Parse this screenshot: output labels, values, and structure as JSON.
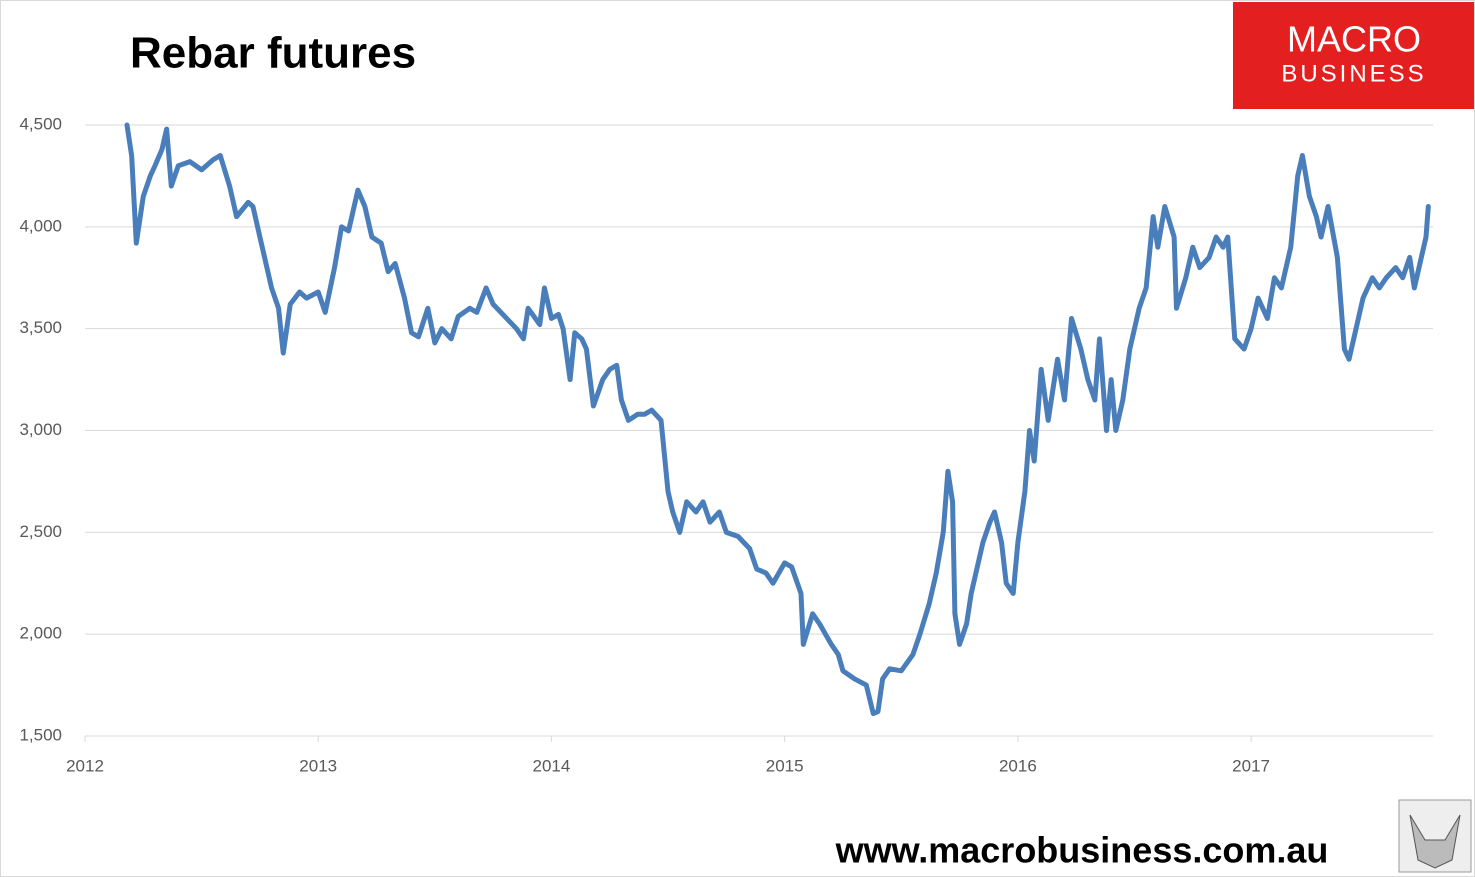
{
  "chart_data": {
    "type": "line",
    "title": "Rebar futures",
    "logo": [
      "MACRO",
      "BUSINESS"
    ],
    "source": "www.macrobusiness.com.au",
    "color": "#4a7ebb",
    "grid": true,
    "xlim": [
      2012,
      2017.78
    ],
    "xticks": [
      2012,
      2013,
      2014,
      2015,
      2016,
      2017
    ],
    "ylim": [
      1500,
      4500
    ],
    "yticks": [
      {
        "value": 1500,
        "label": "1,500"
      },
      {
        "value": 2000,
        "label": "2,000"
      },
      {
        "value": 2500,
        "label": "2,500"
      },
      {
        "value": 3000,
        "label": "3,000"
      },
      {
        "value": 3500,
        "label": "3,500"
      },
      {
        "value": 4000,
        "label": "4,000"
      },
      {
        "value": 4500,
        "label": "4,500"
      }
    ],
    "x": [
      2012.18,
      2012.2,
      2012.22,
      2012.25,
      2012.28,
      2012.3,
      2012.33,
      2012.35,
      2012.37,
      2012.4,
      2012.45,
      2012.5,
      2012.55,
      2012.58,
      2012.62,
      2012.65,
      2012.7,
      2012.72,
      2012.75,
      2012.78,
      2012.8,
      2012.83,
      2012.85,
      2012.88,
      2012.92,
      2012.95,
      2013.0,
      2013.03,
      2013.07,
      2013.1,
      2013.13,
      2013.17,
      2013.2,
      2013.23,
      2013.27,
      2013.3,
      2013.33,
      2013.37,
      2013.4,
      2013.43,
      2013.47,
      2013.5,
      2013.53,
      2013.57,
      2013.6,
      2013.65,
      2013.68,
      2013.72,
      2013.75,
      2013.8,
      2013.85,
      2013.88,
      2013.9,
      2013.95,
      2013.97,
      2014.0,
      2014.03,
      2014.05,
      2014.08,
      2014.1,
      2014.13,
      2014.15,
      2014.18,
      2014.22,
      2014.25,
      2014.28,
      2014.3,
      2014.33,
      2014.37,
      2014.4,
      2014.43,
      2014.47,
      2014.5,
      2014.52,
      2014.55,
      2014.58,
      2014.62,
      2014.65,
      2014.68,
      2014.72,
      2014.75,
      2014.8,
      2014.85,
      2014.88,
      2014.92,
      2014.95,
      2015.0,
      2015.03,
      2015.07,
      2015.08,
      2015.12,
      2015.15,
      2015.2,
      2015.23,
      2015.25,
      2015.3,
      2015.35,
      2015.38,
      2015.4,
      2015.42,
      2015.45,
      2015.5,
      2015.55,
      2015.58,
      2015.62,
      2015.65,
      2015.68,
      2015.7,
      2015.72,
      2015.73,
      2015.75,
      2015.78,
      2015.8,
      2015.83,
      2015.85,
      2015.88,
      2015.9,
      2015.93,
      2015.95,
      2015.98,
      2016.0,
      2016.03,
      2016.05,
      2016.07,
      2016.1,
      2016.13,
      2016.17,
      2016.2,
      2016.23,
      2016.27,
      2016.3,
      2016.33,
      2016.35,
      2016.38,
      2016.4,
      2016.42,
      2016.45,
      2016.48,
      2016.52,
      2016.55,
      2016.58,
      2016.6,
      2016.63,
      2016.67,
      2016.68,
      2016.72,
      2016.75,
      2016.78,
      2016.82,
      2016.85,
      2016.88,
      2016.9,
      2016.93,
      2016.97,
      2017.0,
      2017.03,
      2017.07,
      2017.1,
      2017.13,
      2017.17,
      2017.2,
      2017.22,
      2017.25,
      2017.28,
      2017.3,
      2017.33,
      2017.37,
      2017.4,
      2017.42,
      2017.45,
      2017.48,
      2017.52,
      2017.55,
      2017.58,
      2017.62,
      2017.65,
      2017.68,
      2017.7,
      2017.72,
      2017.75,
      2017.76
    ],
    "values": [
      4500,
      4350,
      3920,
      4150,
      4250,
      4300,
      4380,
      4480,
      4200,
      4300,
      4320,
      4280,
      4330,
      4350,
      4200,
      4050,
      4120,
      4100,
      3950,
      3800,
      3700,
      3600,
      3380,
      3620,
      3680,
      3650,
      3680,
      3580,
      3800,
      4000,
      3980,
      4180,
      4100,
      3950,
      3920,
      3780,
      3820,
      3650,
      3480,
      3460,
      3600,
      3430,
      3500,
      3450,
      3560,
      3600,
      3580,
      3700,
      3620,
      3560,
      3500,
      3450,
      3600,
      3520,
      3700,
      3550,
      3570,
      3500,
      3250,
      3480,
      3450,
      3400,
      3120,
      3250,
      3300,
      3320,
      3150,
      3050,
      3080,
      3080,
      3100,
      3050,
      2700,
      2600,
      2500,
      2650,
      2600,
      2650,
      2550,
      2600,
      2500,
      2480,
      2420,
      2320,
      2300,
      2250,
      2350,
      2330,
      2200,
      1950,
      2100,
      2050,
      1950,
      1900,
      1820,
      1780,
      1750,
      1610,
      1620,
      1780,
      1830,
      1820,
      1900,
      2000,
      2150,
      2300,
      2500,
      2800,
      2650,
      2100,
      1950,
      2050,
      2200,
      2350,
      2450,
      2550,
      2600,
      2450,
      2250,
      2200,
      2450,
      2700,
      3000,
      2850,
      3300,
      3050,
      3350,
      3150,
      3550,
      3400,
      3250,
      3150,
      3450,
      3000,
      3250,
      3000,
      3150,
      3400,
      3600,
      3700,
      4050,
      3900,
      4100,
      3950,
      3600,
      3750,
      3900,
      3800,
      3850,
      3950,
      3900,
      3950,
      3450,
      3400,
      3500,
      3650,
      3550,
      3750,
      3700,
      3900,
      4250,
      4350,
      4150,
      4050,
      3950,
      4100,
      3850,
      3400,
      3350,
      3500,
      3650,
      3750,
      3700,
      3750,
      3800,
      3750,
      3850,
      3700,
      3800,
      3950,
      4100
    ]
  }
}
